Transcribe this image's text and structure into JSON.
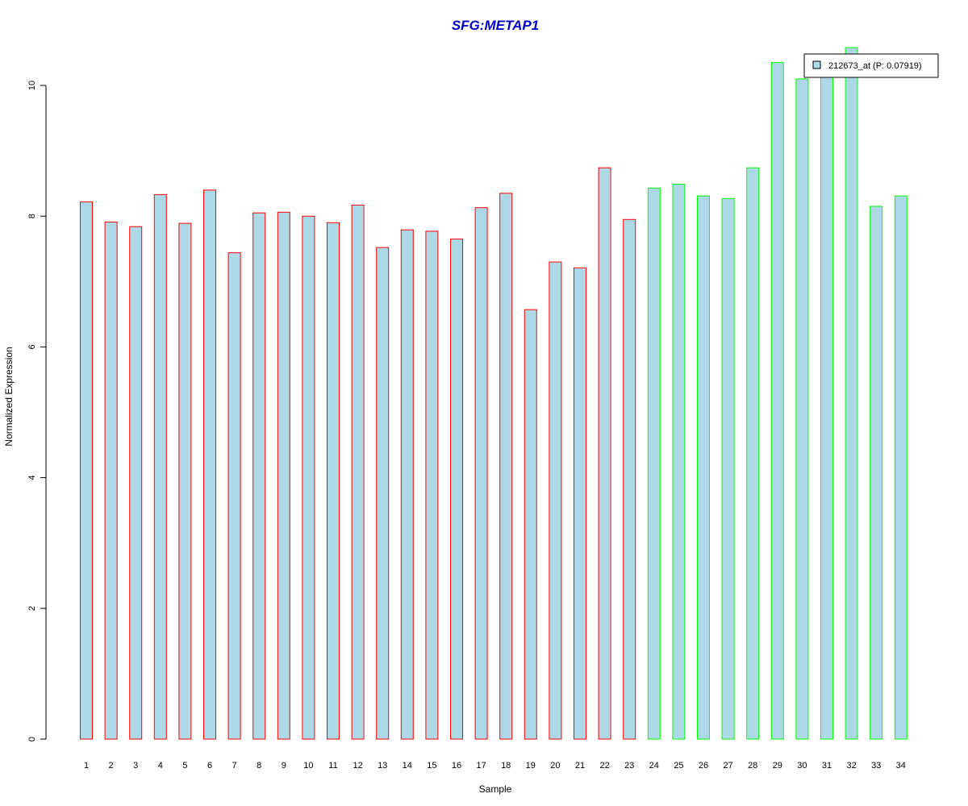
{
  "chart_data": {
    "type": "bar",
    "title": "SFG:METAP1",
    "xlabel": "Sample",
    "ylabel": "Normalized Expression",
    "ylim": [
      0,
      10.6
    ],
    "yticks": [
      0,
      2,
      4,
      6,
      8,
      10
    ],
    "categories": [
      "1",
      "2",
      "3",
      "4",
      "5",
      "6",
      "7",
      "8",
      "9",
      "10",
      "11",
      "12",
      "13",
      "14",
      "15",
      "16",
      "17",
      "18",
      "19",
      "20",
      "21",
      "22",
      "23",
      "24",
      "25",
      "26",
      "27",
      "28",
      "29",
      "30",
      "31",
      "32",
      "33",
      "34"
    ],
    "series": [
      {
        "name": "212673_at (P: 0.07919)",
        "values": [
          8.22,
          7.91,
          7.84,
          8.33,
          7.89,
          8.4,
          7.44,
          8.05,
          8.06,
          8.0,
          7.9,
          8.17,
          7.52,
          7.79,
          7.77,
          7.65,
          8.13,
          8.35,
          6.57,
          7.3,
          7.21,
          8.74,
          7.95,
          8.43,
          8.49,
          8.31,
          8.27,
          8.74,
          10.35,
          10.1,
          10.16,
          10.58,
          8.15,
          8.31
        ]
      }
    ],
    "fill_color": "#add8e6",
    "border_colors": [
      "#ff0000",
      "#ff0000",
      "#ff0000",
      "#ff0000",
      "#ff0000",
      "#ff0000",
      "#ff0000",
      "#ff0000",
      "#ff0000",
      "#ff0000",
      "#ff0000",
      "#ff0000",
      "#ff0000",
      "#ff0000",
      "#ff0000",
      "#ff0000",
      "#ff0000",
      "#ff0000",
      "#ff0000",
      "#ff0000",
      "#ff0000",
      "#ff0000",
      "#ff0000",
      "#00ff00",
      "#00ff00",
      "#00ff00",
      "#00ff00",
      "#00ff00",
      "#00ff00",
      "#00ff00",
      "#00ff00",
      "#00ff00",
      "#00ff00",
      "#00ff00"
    ],
    "title_color": "#0000cd",
    "legend_position": "top-right",
    "grid": false
  }
}
